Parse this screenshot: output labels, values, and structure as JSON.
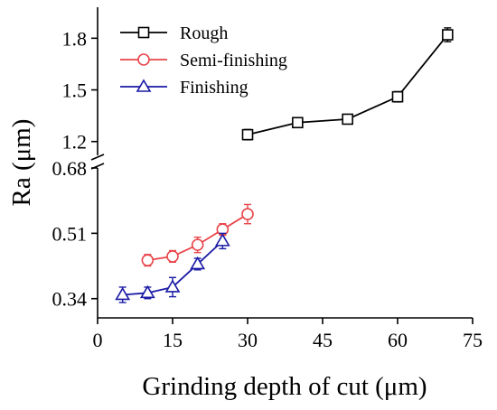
{
  "chart_data": {
    "type": "line",
    "xlabel": "Grinding depth of cut (μm)",
    "ylabel": "Ra (μm)",
    "xlim": [
      0,
      75
    ],
    "x_ticks": [
      0,
      15,
      30,
      45,
      60,
      75
    ],
    "y_axis_broken": true,
    "y_lower_segment": {
      "ylim": [
        0.29,
        0.68
      ],
      "ticks": [
        0.34,
        0.51,
        0.68
      ]
    },
    "y_upper_segment": {
      "ylim": [
        1.12,
        1.98
      ],
      "ticks": [
        1.2,
        1.5,
        1.8
      ]
    },
    "grid": false,
    "legend_position": "top-left",
    "series": [
      {
        "name": "Rough",
        "color": "#000000",
        "marker": "square",
        "x": [
          30,
          40,
          50,
          60,
          70
        ],
        "y": [
          1.24,
          1.31,
          1.33,
          1.46,
          1.82
        ],
        "error": [
          0.03,
          0.02,
          0.02,
          0.03,
          0.04
        ]
      },
      {
        "name": "Semi-finishing",
        "color": "#e8454a",
        "marker": "circle",
        "x": [
          10,
          15,
          20,
          25,
          30
        ],
        "y": [
          0.44,
          0.45,
          0.48,
          0.52,
          0.56
        ],
        "error": [
          0.015,
          0.015,
          0.02,
          0.015,
          0.025
        ]
      },
      {
        "name": "Finishing",
        "color": "#1a1aa6",
        "marker": "triangle",
        "x": [
          5,
          10,
          15,
          20,
          25
        ],
        "y": [
          0.35,
          0.355,
          0.37,
          0.43,
          0.49
        ],
        "error": [
          0.02,
          0.015,
          0.025,
          0.015,
          0.02
        ]
      }
    ]
  }
}
